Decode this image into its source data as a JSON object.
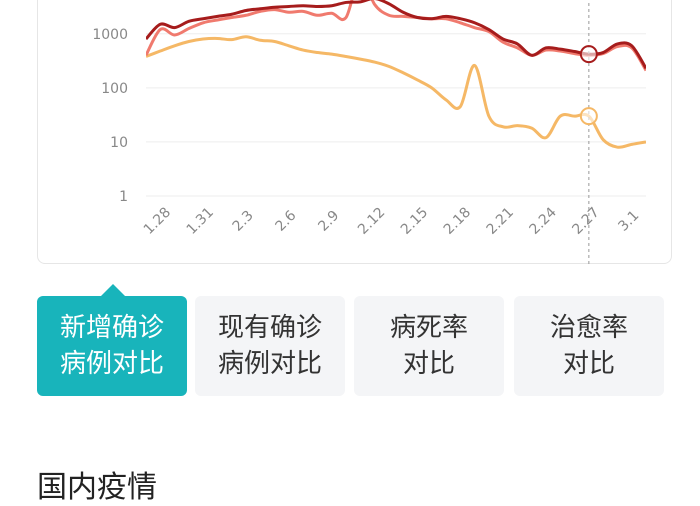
{
  "chart_data": {
    "type": "line",
    "title": "",
    "xlabel": "",
    "ylabel": "",
    "y_scale": "log",
    "ylim": [
      1,
      5000
    ],
    "y_ticks": [
      "1",
      "10",
      "100",
      "1000"
    ],
    "y_tick_values": [
      1,
      10,
      100,
      1000
    ],
    "x_tick_labels": [
      "1.28",
      "1.31",
      "2.3",
      "2.6",
      "2.9",
      "2.12",
      "2.15",
      "2.18",
      "2.21",
      "2.24",
      "2.27",
      "3.1"
    ],
    "x_tick_days": [
      0,
      3,
      6,
      9,
      12,
      15,
      18,
      21,
      24,
      27,
      30,
      33
    ],
    "xlim_days": [
      -1,
      34
    ],
    "highlight_day": 30,
    "grid": true,
    "colors": {
      "s1": "#a61c1c",
      "s2": "#f07a6e",
      "s3": "#f5b866"
    },
    "series": [
      {
        "key": "s1",
        "x": [
          -1,
          0,
          1,
          2,
          3,
          4,
          5,
          6,
          7,
          8,
          9,
          10,
          11,
          12,
          13,
          14,
          15,
          16,
          17,
          18,
          19,
          20,
          21,
          22,
          23,
          24,
          25,
          26,
          27,
          28,
          29,
          30,
          31,
          32,
          33,
          34
        ],
        "y": [
          800,
          1500,
          1300,
          1700,
          1900,
          2100,
          2300,
          2700,
          2900,
          3100,
          3200,
          3300,
          3200,
          3300,
          3800,
          3900,
          4500,
          3600,
          2500,
          2000,
          1900,
          2100,
          1900,
          1600,
          1200,
          800,
          650,
          400,
          550,
          520,
          470,
          420,
          450,
          650,
          600,
          230
        ]
      },
      {
        "key": "s2",
        "x": [
          -1,
          0,
          1,
          2,
          3,
          4,
          5,
          6,
          7,
          8,
          9,
          10,
          11,
          12,
          13,
          14,
          15,
          16,
          17,
          18,
          19,
          20,
          21,
          22,
          23,
          24,
          25,
          26,
          27,
          28,
          29,
          30,
          31,
          32,
          33,
          34
        ],
        "y": [
          400,
          1200,
          950,
          1250,
          1600,
          1800,
          2000,
          2200,
          2600,
          2800,
          2500,
          2600,
          2200,
          2400,
          2000,
          12000,
          3500,
          2200,
          2100,
          2000,
          1900,
          1900,
          1600,
          1300,
          1100,
          700,
          550,
          400,
          500,
          480,
          430,
          400,
          430,
          580,
          550,
          210
        ]
      },
      {
        "key": "s3",
        "x": [
          -1,
          0,
          1,
          2,
          3,
          4,
          5,
          6,
          7,
          8,
          9,
          10,
          11,
          12,
          13,
          14,
          15,
          16,
          17,
          18,
          19,
          20,
          21,
          22,
          23,
          24,
          25,
          26,
          27,
          28,
          29,
          30,
          31,
          32,
          33,
          34
        ],
        "y": [
          380,
          480,
          600,
          720,
          800,
          820,
          780,
          880,
          760,
          720,
          600,
          500,
          450,
          420,
          380,
          340,
          300,
          250,
          190,
          140,
          100,
          60,
          45,
          260,
          30,
          19,
          20,
          18,
          12,
          30,
          30,
          30,
          11,
          8,
          9,
          10
        ]
      }
    ]
  },
  "tabs": [
    {
      "line1": "新增确诊",
      "line2": "病例对比"
    },
    {
      "line1": "现有确诊",
      "line2": "病例对比"
    },
    {
      "line1": "病死率",
      "line2": "对比"
    },
    {
      "line1": "治愈率",
      "line2": "对比"
    }
  ],
  "section_title": "国内疫情"
}
